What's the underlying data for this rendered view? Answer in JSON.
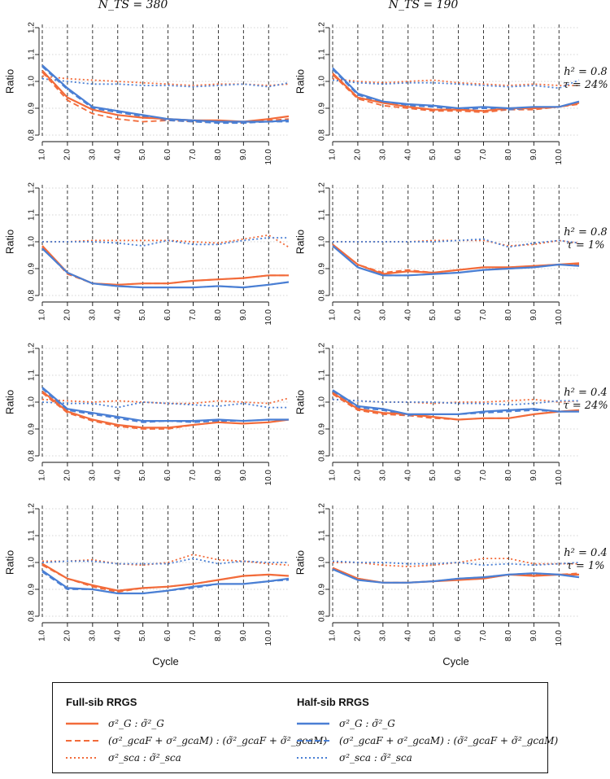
{
  "colors": {
    "full_sib": "#f26b3a",
    "half_sib": "#4a7fd4",
    "grid": "#bdbdbd",
    "axis": "#111111"
  },
  "chart_data": {
    "type": "line",
    "layout": "4x2 grid of line panels",
    "ylabel": "Ratio",
    "xlabel": "Cycle",
    "ylim": [
      0.8,
      1.2
    ],
    "yticks": [
      0.8,
      0.9,
      1.0,
      1.1,
      1.2
    ],
    "xticks": [
      "1.0",
      "2.0",
      "3.0",
      "4.0",
      "5.0",
      "6.0",
      "7.0",
      "8.0",
      "9.0",
      "10.0"
    ],
    "x": [
      1,
      2,
      3,
      4,
      5,
      6,
      7,
      8,
      9,
      10,
      10.8
    ],
    "xlim": [
      1,
      10.8
    ],
    "column_titles": [
      "N_TS = 380",
      "N_TS = 190"
    ],
    "row_labels": [
      {
        "h2": "h² = 0.8",
        "tau": "τ = 24%"
      },
      {
        "h2": "h² = 0.8",
        "tau": "τ = 1%"
      },
      {
        "h2": "h² = 0.4",
        "tau": "τ = 24%"
      },
      {
        "h2": "h² = 0.4",
        "tau": "τ = 1%"
      }
    ],
    "series_styles": [
      {
        "key": "fs_G",
        "group": "Full-sib RRGS",
        "color": "#f26b3a",
        "dash": "solid"
      },
      {
        "key": "fs_gca",
        "group": "Full-sib RRGS",
        "color": "#f26b3a",
        "dash": "dashed"
      },
      {
        "key": "fs_sca",
        "group": "Full-sib RRGS",
        "color": "#f26b3a",
        "dash": "dotted"
      },
      {
        "key": "hs_G",
        "group": "Half-sib RRGS",
        "color": "#4a7fd4",
        "dash": "solid"
      },
      {
        "key": "hs_gca",
        "group": "Half-sib RRGS",
        "color": "#4a7fd4",
        "dash": "dashed"
      },
      {
        "key": "hs_sca",
        "group": "Half-sib RRGS",
        "color": "#4a7fd4",
        "dash": "dotted"
      }
    ],
    "panels": [
      {
        "row": 0,
        "col": 0,
        "series": {
          "fs_G": [
            1.04,
            0.94,
            0.895,
            0.875,
            0.865,
            0.86,
            0.855,
            0.855,
            0.85,
            0.86,
            0.87
          ],
          "fs_gca": [
            1.035,
            0.93,
            0.88,
            0.86,
            0.85,
            0.855,
            0.85,
            0.85,
            0.845,
            0.855,
            0.86
          ],
          "fs_sca": [
            1.02,
            1.01,
            1.005,
            1.0,
            0.995,
            0.99,
            0.985,
            0.99,
            0.99,
            0.985,
            0.99
          ],
          "hs_G": [
            1.06,
            0.975,
            0.905,
            0.89,
            0.875,
            0.86,
            0.855,
            0.85,
            0.85,
            0.85,
            0.855
          ],
          "hs_gca": [
            1.055,
            0.97,
            0.9,
            0.885,
            0.87,
            0.855,
            0.85,
            0.845,
            0.845,
            0.85,
            0.85
          ],
          "hs_sca": [
            1.01,
            1.0,
            0.99,
            0.99,
            0.985,
            0.985,
            0.98,
            0.985,
            0.99,
            0.98,
            0.995
          ]
        }
      },
      {
        "row": 0,
        "col": 1,
        "series": {
          "fs_G": [
            1.03,
            0.94,
            0.92,
            0.905,
            0.895,
            0.895,
            0.89,
            0.9,
            0.9,
            0.905,
            0.92
          ],
          "fs_gca": [
            1.025,
            0.935,
            0.91,
            0.9,
            0.89,
            0.89,
            0.885,
            0.895,
            0.895,
            0.905,
            0.915
          ],
          "fs_sca": [
            1.01,
            1.0,
            0.995,
            1.0,
            1.005,
            0.995,
            0.99,
            0.985,
            0.99,
            0.985,
            0.985
          ],
          "hs_G": [
            1.05,
            0.955,
            0.925,
            0.915,
            0.91,
            0.9,
            0.905,
            0.9,
            0.905,
            0.905,
            0.925
          ],
          "hs_gca": [
            1.045,
            0.95,
            0.92,
            0.91,
            0.905,
            0.895,
            0.9,
            0.895,
            0.9,
            0.905,
            0.92
          ],
          "hs_sca": [
            1.005,
            0.995,
            0.99,
            0.995,
            0.995,
            0.99,
            0.985,
            0.98,
            0.985,
            0.975,
            1.005
          ]
        }
      },
      {
        "row": 1,
        "col": 0,
        "series": {
          "fs_G": [
            0.985,
            0.885,
            0.845,
            0.84,
            0.845,
            0.845,
            0.855,
            0.86,
            0.865,
            0.875,
            0.875
          ],
          "fs_gca": [
            0.98,
            0.88,
            0.845,
            0.84,
            0.845,
            0.845,
            0.855,
            0.86,
            0.865,
            0.875,
            0.875
          ],
          "fs_sca": [
            1.0,
            1.0,
            1.005,
            1.005,
            1.005,
            1.005,
            1.0,
            0.995,
            1.01,
            1.025,
            0.98
          ],
          "hs_G": [
            0.975,
            0.885,
            0.845,
            0.835,
            0.83,
            0.83,
            0.83,
            0.835,
            0.83,
            0.84,
            0.85
          ],
          "hs_gca": [
            0.975,
            0.885,
            0.845,
            0.835,
            0.83,
            0.83,
            0.83,
            0.835,
            0.83,
            0.84,
            0.85
          ],
          "hs_sca": [
            1.0,
            1.0,
            1.0,
            0.995,
            0.985,
            1.005,
            0.99,
            0.99,
            1.005,
            1.015,
            1.015
          ]
        }
      },
      {
        "row": 1,
        "col": 1,
        "series": {
          "fs_G": [
            0.99,
            0.915,
            0.88,
            0.89,
            0.885,
            0.895,
            0.905,
            0.905,
            0.91,
            0.915,
            0.92
          ],
          "fs_gca": [
            0.99,
            0.915,
            0.885,
            0.895,
            0.885,
            0.895,
            0.905,
            0.905,
            0.91,
            0.915,
            0.915
          ],
          "fs_sca": [
            1.0,
            1.0,
            1.0,
            1.0,
            1.005,
            1.005,
            1.005,
            0.985,
            0.99,
            1.005,
            0.995
          ],
          "hs_G": [
            0.985,
            0.905,
            0.875,
            0.875,
            0.88,
            0.885,
            0.895,
            0.9,
            0.905,
            0.915,
            0.91
          ],
          "hs_gca": [
            0.985,
            0.905,
            0.875,
            0.875,
            0.88,
            0.885,
            0.895,
            0.9,
            0.905,
            0.915,
            0.91
          ],
          "hs_sca": [
            1.0,
            1.0,
            1.0,
            1.0,
            1.0,
            1.005,
            1.01,
            0.98,
            0.995,
            1.005,
            0.995
          ]
        }
      },
      {
        "row": 2,
        "col": 0,
        "series": {
          "fs_G": [
            1.04,
            0.965,
            0.935,
            0.915,
            0.905,
            0.905,
            0.915,
            0.925,
            0.92,
            0.925,
            0.935
          ],
          "fs_gca": [
            1.035,
            0.96,
            0.93,
            0.91,
            0.9,
            0.9,
            0.915,
            0.925,
            0.92,
            0.925,
            0.935
          ],
          "fs_sca": [
            1.01,
            1.005,
            1.0,
            1.005,
            1.0,
            0.995,
            0.995,
            1.005,
            1.0,
            0.995,
            1.015
          ],
          "hs_G": [
            1.055,
            0.975,
            0.96,
            0.945,
            0.93,
            0.93,
            0.93,
            0.935,
            0.93,
            0.935,
            0.935
          ],
          "hs_gca": [
            1.05,
            0.97,
            0.955,
            0.94,
            0.925,
            0.93,
            0.925,
            0.93,
            0.93,
            0.935,
            0.935
          ],
          "hs_sca": [
            1.0,
            0.995,
            0.995,
            0.98,
            1.0,
            0.995,
            0.99,
            0.985,
            0.995,
            0.98,
            0.98
          ]
        }
      },
      {
        "row": 2,
        "col": 1,
        "series": {
          "fs_G": [
            1.035,
            0.975,
            0.96,
            0.955,
            0.945,
            0.935,
            0.94,
            0.94,
            0.955,
            0.965,
            0.97
          ],
          "fs_gca": [
            1.03,
            0.97,
            0.955,
            0.95,
            0.94,
            0.935,
            0.94,
            0.94,
            0.955,
            0.965,
            0.965
          ],
          "fs_sca": [
            1.01,
            1.005,
            1.0,
            1.0,
            0.995,
            1.0,
            1.0,
            1.005,
            1.01,
            1.0,
            1.005
          ],
          "hs_G": [
            1.045,
            0.985,
            0.975,
            0.955,
            0.955,
            0.955,
            0.965,
            0.97,
            0.975,
            0.965,
            0.965
          ],
          "hs_gca": [
            1.04,
            0.98,
            0.97,
            0.95,
            0.955,
            0.955,
            0.96,
            0.965,
            0.97,
            0.965,
            0.965
          ],
          "hs_sca": [
            1.01,
            1.005,
            1.0,
            1.0,
            1.0,
            0.995,
            0.995,
            0.99,
            0.995,
            1.005,
            1.005
          ]
        }
      },
      {
        "row": 3,
        "col": 0,
        "series": {
          "fs_G": [
            0.995,
            0.94,
            0.915,
            0.895,
            0.905,
            0.91,
            0.92,
            0.935,
            0.95,
            0.955,
            0.95
          ],
          "fs_gca": [
            0.99,
            0.94,
            0.91,
            0.89,
            0.905,
            0.91,
            0.92,
            0.935,
            0.95,
            0.955,
            0.95
          ],
          "fs_sca": [
            1.005,
            1.005,
            1.01,
            0.995,
            0.99,
            1.0,
            1.03,
            1.01,
            1.005,
            0.995,
            0.99
          ],
          "hs_G": [
            0.97,
            0.905,
            0.9,
            0.885,
            0.885,
            0.895,
            0.91,
            0.92,
            0.92,
            0.93,
            0.94
          ],
          "hs_gca": [
            0.965,
            0.9,
            0.9,
            0.885,
            0.885,
            0.895,
            0.905,
            0.92,
            0.92,
            0.93,
            0.935
          ],
          "hs_sca": [
            1.0,
            1.005,
            1.005,
            0.995,
            0.995,
            0.995,
            1.015,
            0.995,
            1.005,
            1.0,
            1.0
          ]
        }
      },
      {
        "row": 3,
        "col": 1,
        "series": {
          "fs_G": [
            0.98,
            0.94,
            0.925,
            0.925,
            0.93,
            0.935,
            0.94,
            0.955,
            0.95,
            0.955,
            0.955
          ],
          "fs_gca": [
            0.98,
            0.94,
            0.925,
            0.925,
            0.93,
            0.935,
            0.94,
            0.955,
            0.955,
            0.955,
            0.96
          ],
          "fs_sca": [
            1.0,
            1.0,
            0.99,
            0.985,
            0.99,
            1.0,
            1.015,
            1.015,
            0.995,
            0.995,
            0.995
          ],
          "hs_G": [
            0.975,
            0.935,
            0.925,
            0.925,
            0.93,
            0.94,
            0.945,
            0.955,
            0.96,
            0.955,
            0.945
          ],
          "hs_gca": [
            0.975,
            0.935,
            0.925,
            0.925,
            0.93,
            0.94,
            0.945,
            0.955,
            0.96,
            0.955,
            0.945
          ],
          "hs_sca": [
            1.005,
            1.0,
            1.0,
            0.995,
            0.995,
            1.0,
            0.99,
            0.995,
            0.99,
            0.995,
            1.0
          ]
        }
      }
    ]
  },
  "legend": {
    "full_sib_title": "Full-sib RRGS",
    "half_sib_title": "Half-sib RRGS",
    "items": [
      "σ²_G : σ̃²_G",
      "(σ²_gcaF + σ²_gcaM) : (σ̃²_gcaF + σ̃²_gcaM)",
      "σ²_sca : σ̃²_sca"
    ]
  }
}
